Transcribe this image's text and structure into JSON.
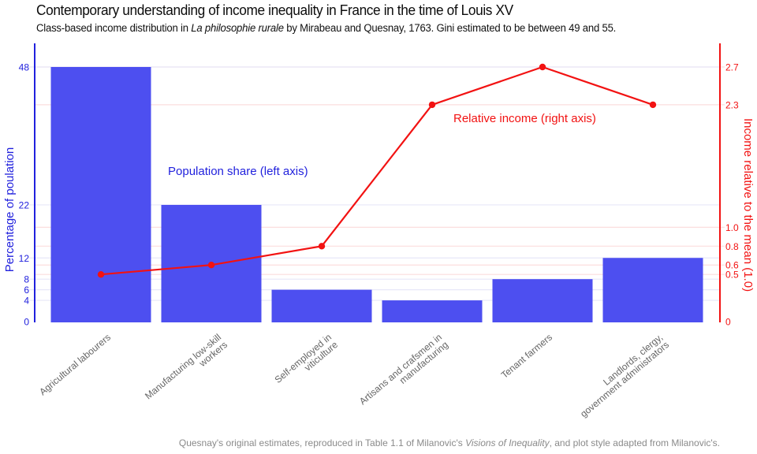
{
  "title": "Contemporary understanding of income inequality in France in the time of Louis XV",
  "subtitle_parts": [
    {
      "text": "Class-based income distribution in ",
      "italic": false
    },
    {
      "text": "La philosophie rurale",
      "italic": true
    },
    {
      "text": " by Mirabeau and Quesnay, 1763. Gini estimated to be between 49 and 55.",
      "italic": false
    }
  ],
  "footer_parts": [
    {
      "text": "Quesnay's original estimates, reproduced in Table 1.1 of Milanovic's ",
      "italic": false
    },
    {
      "text": "Visions of Inequality",
      "italic": true
    },
    {
      "text": ", and plot style adapted from Milanovic's.",
      "italic": false
    }
  ],
  "chart_data": {
    "type": "bar",
    "subtype": "bar-and-line-combo-dual-axis",
    "categories": [
      "Agricultural labourers",
      "Manufacturing low-skill\nworkers",
      "Self-employed in\nviticulture",
      "Artisans and crafsmen in\nmanufacturing",
      "Tenant farmers",
      "Landlords, clergy,\ngovernment administrators"
    ],
    "series": [
      {
        "name": "Population share (left axis)",
        "type": "bar",
        "axis": "left",
        "color": "#4d4ff0",
        "values": [
          48,
          22,
          6,
          4,
          8,
          12
        ]
      },
      {
        "name": "Relative income (right axis)",
        "type": "line",
        "axis": "right",
        "color": "#f21212",
        "values": [
          0.5,
          0.6,
          0.8,
          2.3,
          2.7,
          2.3
        ]
      }
    ],
    "left_axis": {
      "label": "Percentage of poulation",
      "color": "#2121dd",
      "range": [
        0,
        52
      ],
      "ticks": [
        {
          "v": 0,
          "label": "0"
        },
        {
          "v": 4,
          "label": "4"
        },
        {
          "v": 6,
          "label": "6"
        },
        {
          "v": 8,
          "label": "8"
        },
        {
          "v": 12,
          "label": "12"
        },
        {
          "v": 22,
          "label": "22"
        },
        {
          "v": 48,
          "label": "48"
        }
      ]
    },
    "right_axis": {
      "label": "Income relative to the mean (1.0)",
      "color": "#f21212",
      "range": [
        0,
        2.95
      ],
      "ticks": [
        {
          "v": 0,
          "label": "0"
        },
        {
          "v": 0.5,
          "label": "0.5"
        },
        {
          "v": 0.6,
          "label": "0.6"
        },
        {
          "v": 0.8,
          "label": "0.8"
        },
        {
          "v": 1,
          "label": "1.0"
        },
        {
          "v": 2.3,
          "label": "2.3"
        },
        {
          "v": 2.7,
          "label": "2.7"
        }
      ]
    },
    "annotations": [
      {
        "text": "Population share (left axis)",
        "color": "#2222dd"
      },
      {
        "text": "Relative income (right axis)",
        "color": "#f21212"
      }
    ],
    "grid": {
      "left_tick_line_color": "#e7e7f8",
      "right_tick_line_color": "#fbdede",
      "background": "#ffffff"
    },
    "category_label_color": "#666666",
    "legend": "none"
  }
}
